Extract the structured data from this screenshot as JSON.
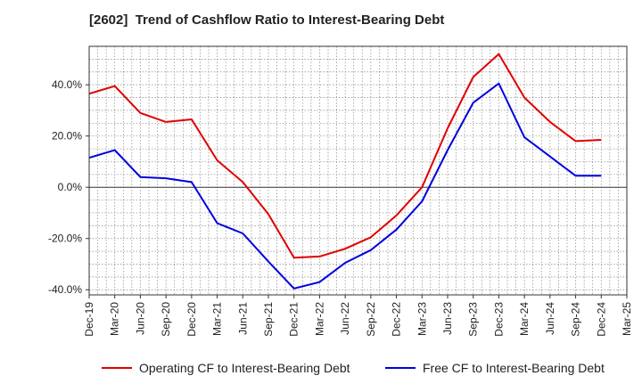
{
  "chart_data": {
    "type": "line",
    "title": "[2602]  Trend of Cashflow Ratio to Interest-Bearing Debt",
    "xlabel": "",
    "ylabel": "",
    "x": [
      "Dec-19",
      "Mar-20",
      "Jun-20",
      "Sep-20",
      "Dec-20",
      "Mar-21",
      "Jun-21",
      "Sep-21",
      "Dec-21",
      "Mar-22",
      "Jun-22",
      "Sep-22",
      "Dec-22",
      "Mar-23",
      "Jun-23",
      "Sep-23",
      "Dec-23",
      "Mar-24",
      "Jun-24",
      "Sep-24",
      "Dec-24"
    ],
    "x_tick_labels": [
      "Dec-19",
      "Mar-20",
      "Jun-20",
      "Sep-20",
      "Dec-20",
      "Mar-21",
      "Jun-21",
      "Sep-21",
      "Dec-21",
      "Mar-22",
      "Jun-22",
      "Sep-22",
      "Dec-22",
      "Mar-23",
      "Jun-23",
      "Sep-23",
      "Dec-23",
      "Mar-24",
      "Jun-24",
      "Sep-24",
      "Dec-24",
      "Mar-25"
    ],
    "y_tick_labels": [
      "40.0%",
      "20.0%",
      "0.0%",
      "-20.0%",
      "-40.0%"
    ],
    "y_ticks": [
      40,
      20,
      0,
      -20,
      -40
    ],
    "ylim": [
      -42,
      55
    ],
    "grid": true,
    "legend_position": "bottom",
    "series": [
      {
        "name": "Operating CF to Interest-Bearing Debt",
        "color": "#e00000",
        "values": [
          36.5,
          39.5,
          29.0,
          25.5,
          26.5,
          10.5,
          2.0,
          -10.5,
          -27.5,
          -27.0,
          -24.0,
          -19.5,
          -11.0,
          0.0,
          23.0,
          43.0,
          52.0,
          35.0,
          25.5,
          18.0,
          18.5
        ]
      },
      {
        "name": "Free CF to Interest-Bearing Debt",
        "color": "#0000e0",
        "values": [
          11.5,
          14.5,
          4.0,
          3.5,
          2.0,
          -14.0,
          -18.0,
          -29.0,
          -39.5,
          -37.0,
          -29.5,
          -24.5,
          -16.5,
          -5.5,
          14.5,
          33.0,
          40.5,
          19.5,
          12.0,
          4.5,
          4.5
        ]
      }
    ]
  }
}
